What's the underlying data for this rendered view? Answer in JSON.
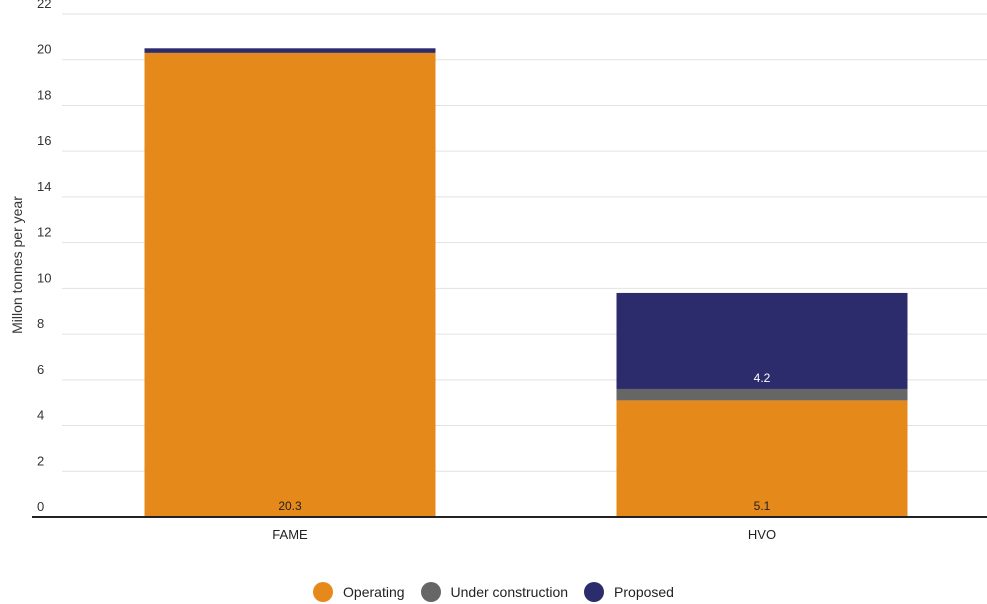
{
  "chart_data": {
    "type": "bar",
    "stacked": true,
    "categories": [
      "FAME",
      "HVO"
    ],
    "series": [
      {
        "name": "Operating",
        "values": [
          20.3,
          5.1
        ],
        "color": "#E58A1A"
      },
      {
        "name": "Under construction",
        "values": [
          0,
          0.5
        ],
        "color": "#666666"
      },
      {
        "name": "Proposed",
        "values": [
          0.2,
          4.2
        ],
        "color": "#2C2C6C"
      }
    ],
    "data_labels": [
      {
        "category": "FAME",
        "series": "Operating",
        "text": "20.3"
      },
      {
        "category": "HVO",
        "series": "Operating",
        "text": "5.1"
      },
      {
        "category": "HVO",
        "series": "Proposed",
        "text": "4.2"
      }
    ],
    "ylabel": "Millon tonnes per year",
    "xlabel": "",
    "ylim": [
      0,
      22
    ],
    "yticks": [
      0,
      2,
      4,
      6,
      8,
      10,
      12,
      14,
      16,
      18,
      20,
      22
    ],
    "grid": true,
    "legend_position": "bottom"
  }
}
